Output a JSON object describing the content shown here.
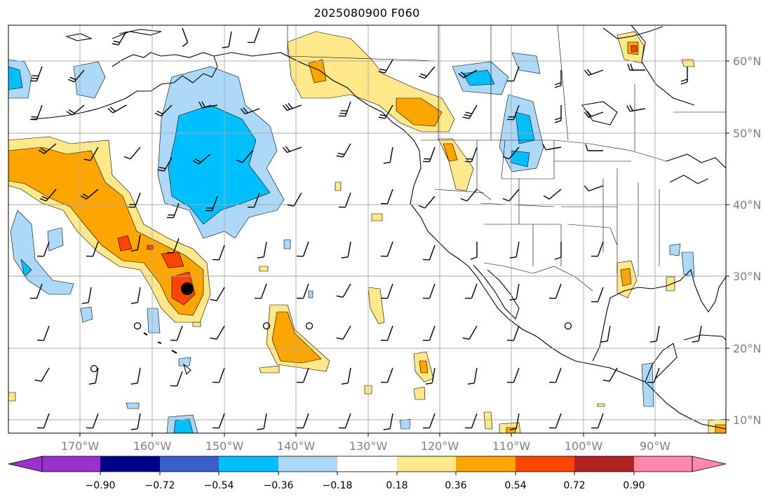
{
  "title": "2025080900 F060",
  "lon_labels": [
    "170°W",
    "160°W",
    "150°W",
    "140°W",
    "130°W",
    "120°W",
    "110°W",
    "100°W",
    "90°W"
  ],
  "lat_labels": [
    "60°N",
    "50°N",
    "40°N",
    "30°N",
    "20°N",
    "10°N"
  ],
  "colorbar": {
    "tick_labels": [
      "−0.90",
      "−0.72",
      "−0.54",
      "−0.36",
      "−0.18",
      "0.18",
      "0.36",
      "0.54",
      "0.72",
      "0.90"
    ],
    "colors": [
      "#9932cc",
      "#00008b",
      "#3a5fcd",
      "#00bfff",
      "#add8f7",
      "#ffffff",
      "#ffe88a",
      "#ffa500",
      "#ff4500",
      "#b22222",
      "#ff88aa"
    ]
  },
  "colors": {
    "light_blue": "#add8f7",
    "blue": "#00bfff",
    "light_yellow": "#ffe88a",
    "orange": "#ffa500",
    "red_orange": "#ff4500"
  },
  "marker": {
    "label": "storm-center",
    "lon": -154.8,
    "lat": 28.0
  }
}
